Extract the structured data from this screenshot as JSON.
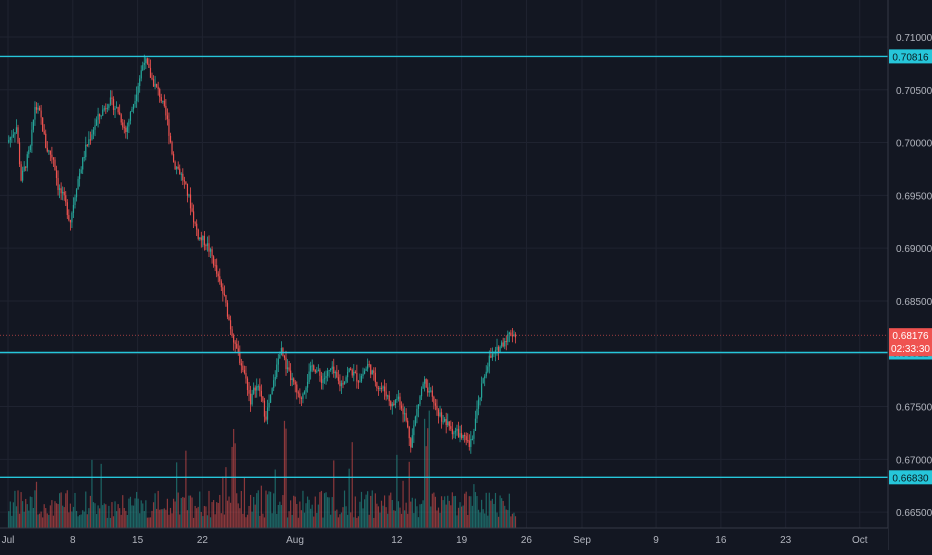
{
  "chart_data": {
    "type": "candlestick",
    "instrument": "",
    "x_axis": {
      "tick_labels": [
        "Jul",
        "8",
        "15",
        "22",
        "Aug",
        "12",
        "19",
        "26",
        "Sep",
        "9",
        "16",
        "23",
        "Oct"
      ],
      "tick_days": [
        0,
        7,
        14,
        21,
        31,
        42,
        49,
        56,
        62,
        70,
        77,
        84,
        92
      ]
    },
    "y_axis": {
      "tick_labels": [
        "0.71000",
        "0.70500",
        "0.70000",
        "0.69500",
        "0.69000",
        "0.68500",
        "0.68000",
        "0.67500",
        "0.67000",
        "0.66500"
      ],
      "tick_values": [
        0.71,
        0.705,
        0.7,
        0.695,
        0.69,
        0.685,
        0.68,
        0.675,
        0.67,
        0.665
      ],
      "range": [
        0.6635,
        0.7135
      ]
    },
    "horizontal_levels": [
      {
        "value": 0.70816,
        "label": "0.70816",
        "color": "#26c6da"
      },
      {
        "value": 0.68012,
        "label": "0.68012",
        "color": "#26c6da"
      },
      {
        "value": 0.6683,
        "label": "0.66830",
        "color": "#26c6da"
      }
    ],
    "last_price": {
      "value": 0.68176,
      "label": "0.68176",
      "countdown": "02:33:30",
      "color": "#ef5350"
    },
    "price_path": [
      [
        0,
        0.7
      ],
      [
        1,
        0.7015
      ],
      [
        1.5,
        0.6965
      ],
      [
        2.5,
        0.6995
      ],
      [
        3,
        0.7035
      ],
      [
        3.6,
        0.7025
      ],
      [
        4.2,
        0.6995
      ],
      [
        5,
        0.6985
      ],
      [
        5.5,
        0.6958
      ],
      [
        6.2,
        0.6945
      ],
      [
        6.8,
        0.6925
      ],
      [
        7.5,
        0.696
      ],
      [
        8.5,
        0.6995
      ],
      [
        9.6,
        0.702
      ],
      [
        11,
        0.704
      ],
      [
        12,
        0.703
      ],
      [
        12.8,
        0.701
      ],
      [
        14,
        0.705
      ],
      [
        14.8,
        0.708
      ],
      [
        15.6,
        0.706
      ],
      [
        16.5,
        0.7045
      ],
      [
        17.3,
        0.702
      ],
      [
        18,
        0.698
      ],
      [
        18.5,
        0.6975
      ],
      [
        19,
        0.6965
      ],
      [
        19.7,
        0.6945
      ],
      [
        20.2,
        0.6925
      ],
      [
        20.7,
        0.691
      ],
      [
        21.5,
        0.6905
      ],
      [
        22.2,
        0.689
      ],
      [
        22.8,
        0.687
      ],
      [
        23.4,
        0.6855
      ],
      [
        24,
        0.683
      ],
      [
        24.6,
        0.6808
      ],
      [
        25.3,
        0.679
      ],
      [
        25.8,
        0.6775
      ],
      [
        26.3,
        0.6755
      ],
      [
        26.8,
        0.677
      ],
      [
        27.3,
        0.6765
      ],
      [
        27.9,
        0.674
      ],
      [
        28.5,
        0.676
      ],
      [
        29.5,
        0.6805
      ],
      [
        30.2,
        0.6785
      ],
      [
        31,
        0.677
      ],
      [
        31.6,
        0.6755
      ],
      [
        32.2,
        0.677
      ],
      [
        33,
        0.679
      ],
      [
        34,
        0.6775
      ],
      [
        35,
        0.6785
      ],
      [
        36,
        0.677
      ],
      [
        37,
        0.6785
      ],
      [
        38,
        0.6775
      ],
      [
        39,
        0.679
      ],
      [
        40,
        0.677
      ],
      [
        40.8,
        0.6765
      ],
      [
        41.6,
        0.675
      ],
      [
        42.2,
        0.676
      ],
      [
        43,
        0.674
      ],
      [
        43.6,
        0.6715
      ],
      [
        44.2,
        0.6745
      ],
      [
        45,
        0.6775
      ],
      [
        45.8,
        0.676
      ],
      [
        46.5,
        0.6745
      ],
      [
        47.3,
        0.6735
      ],
      [
        48,
        0.6728
      ],
      [
        48.7,
        0.6725
      ],
      [
        49.4,
        0.6718
      ],
      [
        50,
        0.6712
      ],
      [
        50.5,
        0.6735
      ],
      [
        51.3,
        0.677
      ],
      [
        52,
        0.6795
      ],
      [
        52.7,
        0.68
      ],
      [
        53.3,
        0.6808
      ],
      [
        53.9,
        0.6815
      ],
      [
        54.4,
        0.682
      ],
      [
        54.9,
        0.6818
      ]
    ],
    "volume": {
      "style": "histogram",
      "bars": 330,
      "up_color": "#26a69a",
      "down_color": "#ef5350"
    },
    "candle_colors": {
      "up": "#26a69a",
      "down": "#ef5350"
    },
    "grid": true
  }
}
